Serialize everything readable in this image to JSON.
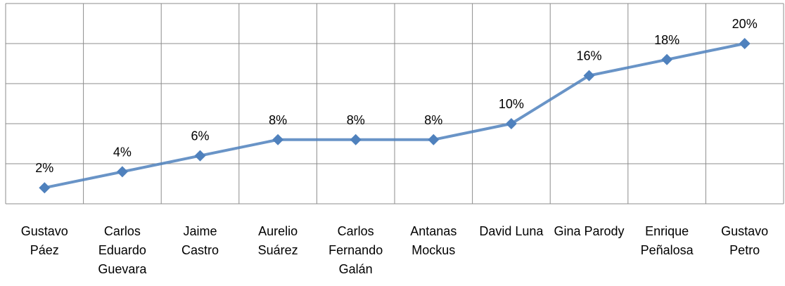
{
  "chart_data": {
    "type": "line",
    "categories": [
      "Gustavo Páez",
      "Carlos Eduardo Guevara",
      "Jaime Castro",
      "Aurelio Suárez",
      "Carlos Fernando Galán",
      "Antanas Mockus",
      "David Luna",
      "Gina Parody",
      "Enrique Peñalosa",
      "Gustavo Petro"
    ],
    "series": [
      {
        "color": "#4f81bd",
        "values": [
          2,
          4,
          6,
          8,
          8,
          8,
          10,
          16,
          18,
          20
        ],
        "value_labels": [
          "2%",
          "4%",
          "6%",
          "8%",
          "8%",
          "8%",
          "10%",
          "16%",
          "18%",
          "20%"
        ]
      }
    ],
    "ylim": [
      0,
      25
    ],
    "yticks": [
      0,
      5,
      10,
      15,
      20,
      25
    ],
    "grid": true
  }
}
